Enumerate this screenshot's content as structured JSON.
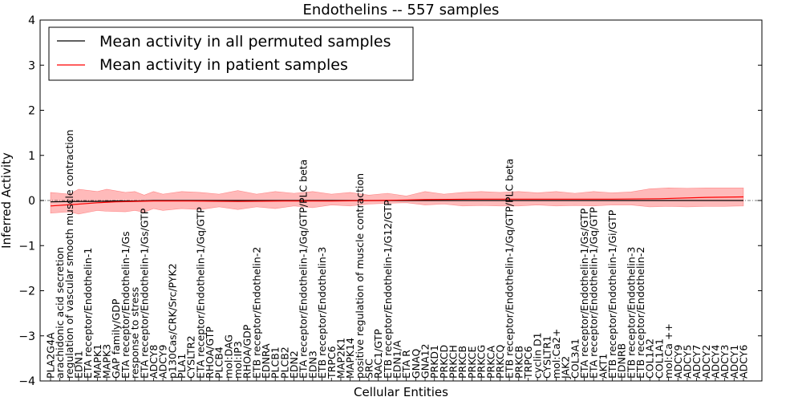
{
  "chart_data": {
    "type": "line",
    "title": "Endothelins -- 557 samples",
    "xlabel": "Cellular Entities",
    "ylabel": "Inferred Activity",
    "ylim": [
      -4,
      4
    ],
    "yticks": [
      -4,
      -3,
      -2,
      -1,
      0,
      1,
      2,
      3,
      4
    ],
    "grid": false,
    "legend_position": "top-left",
    "colors": {
      "permuted": "#000000",
      "patient": "#ff0000",
      "band": "#ff6666"
    },
    "categories": [
      "PLA2G4A",
      "arachidonic acid secretion",
      "regulation of vascular smooth muscle contraction",
      "EDN1",
      "ETA receptor/Endothelin-1",
      "MAPK1",
      "MAPK3",
      "GAP family/GDP",
      "ETA receptor/Endothelin-1/Gs",
      "response to stress",
      "ETA receptor/Endothelin-1/Gs/GTP",
      "ADCY8",
      "ADCY9",
      "p130Cas/CRK/Src/PYK2",
      "PLA1",
      "CYSLTR2",
      "ETA receptor/Endothelin-1/Gq/GTP",
      "RHOA/GTP",
      "PLCB4",
      "mol:DAG",
      "mol:IP3",
      "RHOA/GDP",
      "ETB receptor/Endothelin-2",
      "EDNRA",
      "PLCB1",
      "PLCB2",
      "EDN2",
      "ETA receptor/Endothelin-1/Gq/GTP/PLC beta",
      "EDN3",
      "ETB receptor/Endothelin-3",
      "TRPC6",
      "MAP2K1",
      "MAPK14",
      "positive regulation of muscle contraction",
      "SRC",
      "RAC1/GTP",
      "ETB receptor/Endothelin-1/G12/GTP",
      "EDN1/A",
      "ETA R",
      "GNAQ",
      "GNA12",
      "PRKD1",
      "PRKCD",
      "PRKCH",
      "PRKCB",
      "PRKCE",
      "PRKCG",
      "PRKCA",
      "PRKCQ",
      "ETB receptor/Endothelin-1/Gq/GTP/PLC beta",
      "PRKCB",
      "TRPC6",
      "cyclin D1",
      "CYSLTR1",
      "mol:Ca2+",
      "JAK2",
      "COL3A1",
      "ETA receptor/Endothelin-1/Gs/GTP",
      "ETA receptor/Endothelin-1/Gq/GTP",
      "AKT1",
      "ETB receptor/Endothelin-1/Gi/GTP",
      "EDNRB",
      "ETB receptor/Endothelin-3",
      "ETB receptor/Endothelin-2",
      "COL1A2",
      "COL1A1",
      "mol:Ca ++",
      "ADCY9",
      "ADCY5",
      "ADCY7",
      "ADCY2",
      "ADCY4",
      "ADCY3",
      "ADCY1",
      "ADCY6"
    ],
    "series": [
      {
        "name": "Mean activity in all permuted samples",
        "color": "#000000",
        "x": [
          0,
          3,
          5,
          7,
          9,
          11,
          15,
          20,
          25,
          30,
          35,
          40,
          45,
          50,
          55,
          60,
          65,
          70,
          74
        ],
        "values": [
          -0.03,
          -0.02,
          -0.02,
          -0.01,
          -0.01,
          0.0,
          0.0,
          0.0,
          0.0,
          0.0,
          0.0,
          0.0,
          0.0,
          0.0,
          0.0,
          0.0,
          0.0,
          0.0,
          0.0
        ]
      },
      {
        "name": "Mean activity in patient samples",
        "color": "#ff0000",
        "x": [
          0,
          3,
          5,
          7,
          9,
          11,
          15,
          20,
          25,
          30,
          35,
          40,
          45,
          50,
          55,
          60,
          65,
          70,
          74
        ],
        "values": [
          -0.12,
          -0.08,
          -0.05,
          -0.03,
          -0.02,
          -0.01,
          -0.01,
          -0.02,
          -0.01,
          -0.01,
          0.0,
          0.02,
          0.03,
          0.03,
          0.03,
          0.03,
          0.04,
          0.07,
          0.08
        ]
      }
    ],
    "band": {
      "name": "patient spread",
      "x": [
        0,
        2,
        3,
        5,
        6,
        8,
        9,
        10,
        11,
        12,
        14,
        16,
        18,
        20,
        22,
        24,
        26,
        28,
        30,
        32,
        34,
        36,
        38,
        40,
        42,
        44,
        46,
        48,
        50,
        52,
        54,
        56,
        58,
        60,
        62,
        64,
        66,
        68,
        70,
        72,
        74
      ],
      "upper": [
        0.18,
        0.14,
        0.25,
        0.2,
        0.25,
        0.18,
        0.2,
        0.12,
        0.2,
        0.14,
        0.2,
        0.18,
        0.14,
        0.22,
        0.14,
        0.2,
        0.16,
        0.2,
        0.14,
        0.18,
        0.12,
        0.16,
        0.1,
        0.2,
        0.14,
        0.18,
        0.2,
        0.18,
        0.2,
        0.17,
        0.2,
        0.16,
        0.2,
        0.17,
        0.19,
        0.26,
        0.28,
        0.27,
        0.28,
        0.28,
        0.28
      ],
      "lower": [
        -0.28,
        -0.25,
        -0.3,
        -0.22,
        -0.24,
        -0.25,
        -0.22,
        -0.26,
        -0.18,
        -0.22,
        -0.18,
        -0.2,
        -0.14,
        -0.2,
        -0.14,
        -0.18,
        -0.12,
        -0.16,
        -0.1,
        -0.12,
        -0.08,
        -0.06,
        -0.05,
        -0.1,
        -0.08,
        -0.12,
        -0.11,
        -0.12,
        -0.12,
        -0.1,
        -0.12,
        -0.11,
        -0.12,
        -0.1,
        -0.1,
        -0.14,
        -0.13,
        -0.14,
        -0.13,
        -0.13,
        -0.12
      ]
    }
  }
}
